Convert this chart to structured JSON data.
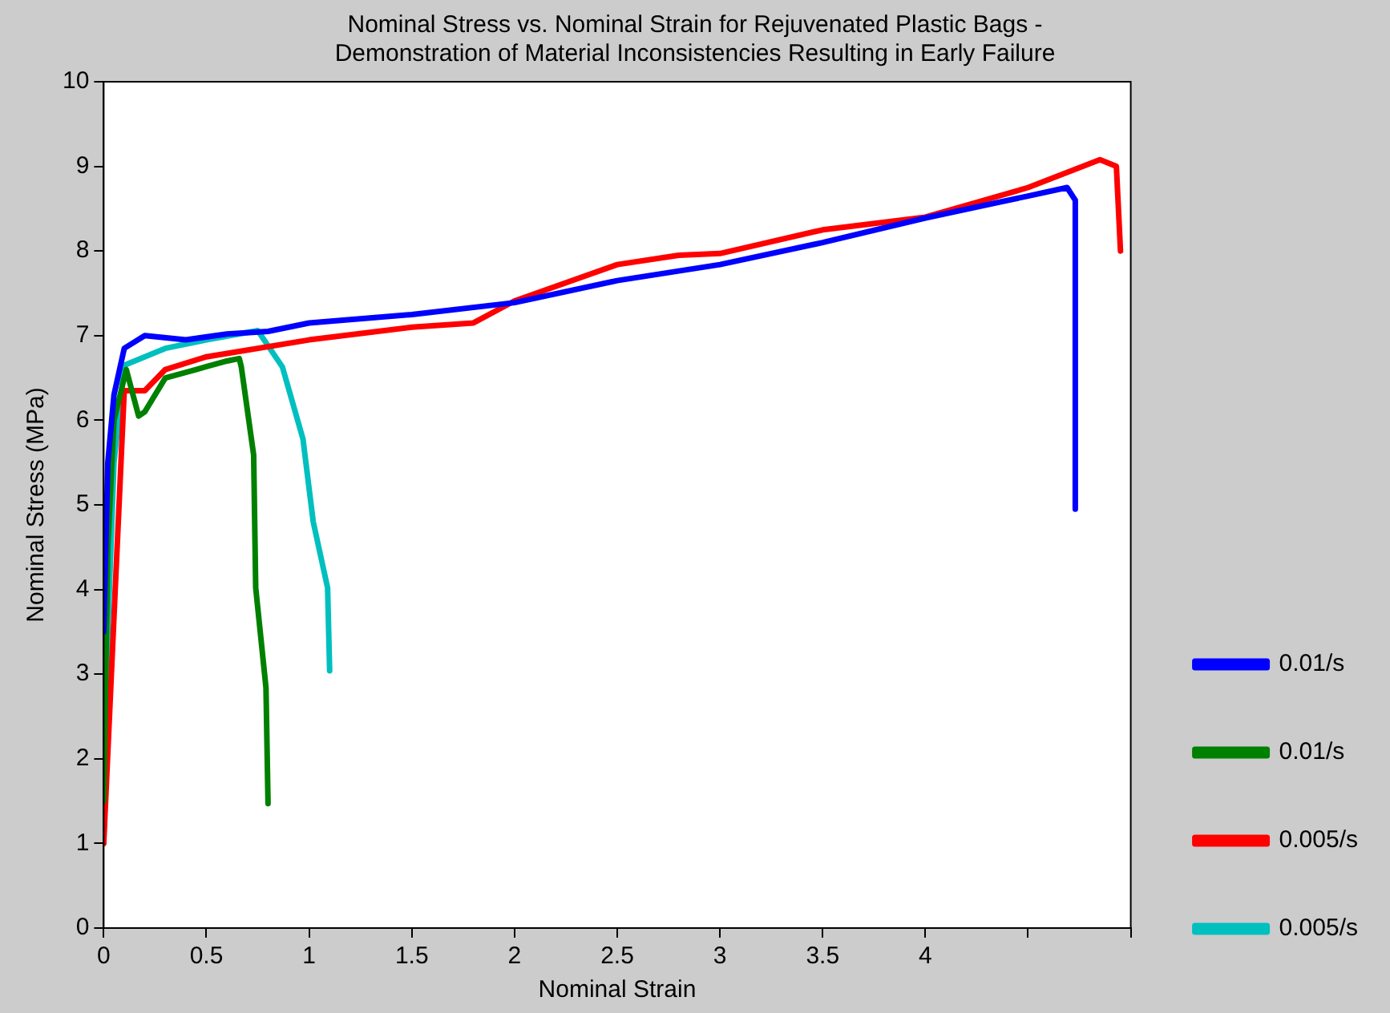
{
  "chart_data": {
    "type": "line",
    "title": "Nominal Stress vs. Nominal Strain for Rejuvenated Plastic Bags -\nDemonstration of Material Inconsistencies Resulting in Early Failure",
    "xlabel": "Nominal Strain",
    "ylabel": "Nominal Stress (MPa)",
    "xlim": [
      0,
      5
    ],
    "xticks": [
      0,
      0.5,
      1,
      1.5,
      2,
      2.5,
      3,
      3.5,
      4,
      {
        "value": 4.5,
        "label": null
      },
      {
        "value": 5,
        "label": null
      }
    ],
    "ylim": [
      0,
      10
    ],
    "yticks": [
      0,
      1,
      2,
      3,
      4,
      5,
      6,
      7,
      8,
      9,
      10
    ],
    "grid": false,
    "legend": "bottom right",
    "marker": "none",
    "line_style": "solid",
    "series": [
      {
        "name": "0.01/s",
        "color": "#0000ff",
        "x": [
          0,
          0.02,
          0.05,
          0.1,
          0.2,
          0.4,
          0.6,
          0.8,
          1.0,
          1.5,
          2.0,
          2.5,
          3.0,
          3.5,
          4.0,
          4.5,
          4.69,
          4.73,
          4.73
        ],
        "values": [
          3.5,
          5.5,
          6.3,
          6.85,
          7.0,
          6.95,
          7.02,
          7.05,
          7.15,
          7.25,
          7.39,
          7.65,
          7.84,
          8.1,
          8.39,
          8.65,
          8.75,
          8.6,
          4.95
        ]
      },
      {
        "name": "0.01/s",
        "color": "#008000",
        "x": [
          0,
          0.02,
          0.05,
          0.11,
          0.17,
          0.2,
          0.3,
          0.45,
          0.6,
          0.66,
          0.67,
          0.73,
          0.74,
          0.79,
          0.8
        ],
        "values": [
          1.5,
          4.5,
          6.0,
          6.6,
          6.05,
          6.1,
          6.5,
          6.6,
          6.7,
          6.73,
          6.63,
          5.59,
          4.02,
          2.84,
          1.47
        ]
      },
      {
        "name": "0.005/s",
        "color": "#ff0000",
        "x": [
          0,
          0.1,
          0.2,
          0.3,
          0.5,
          1.0,
          1.5,
          1.8,
          2.0,
          2.5,
          2.8,
          3.0,
          3.5,
          4.0,
          4.5,
          4.85,
          4.93,
          4.95
        ],
        "values": [
          1,
          6.35,
          6.35,
          6.6,
          6.75,
          6.95,
          7.1,
          7.15,
          7.41,
          7.84,
          7.95,
          7.97,
          8.25,
          8.4,
          8.75,
          9.08,
          9.0,
          8.0
        ]
      },
      {
        "name": "0.005/s",
        "color": "#00bfbf",
        "x": [
          0,
          0.02,
          0.05,
          0.1,
          0.3,
          0.5,
          0.75,
          0.87,
          0.97,
          1.02,
          1.09,
          1.1
        ],
        "values": [
          1,
          3.5,
          5.5,
          6.65,
          6.85,
          6.95,
          7.06,
          6.63,
          5.78,
          4.8,
          4.02,
          3.04
        ]
      }
    ]
  }
}
